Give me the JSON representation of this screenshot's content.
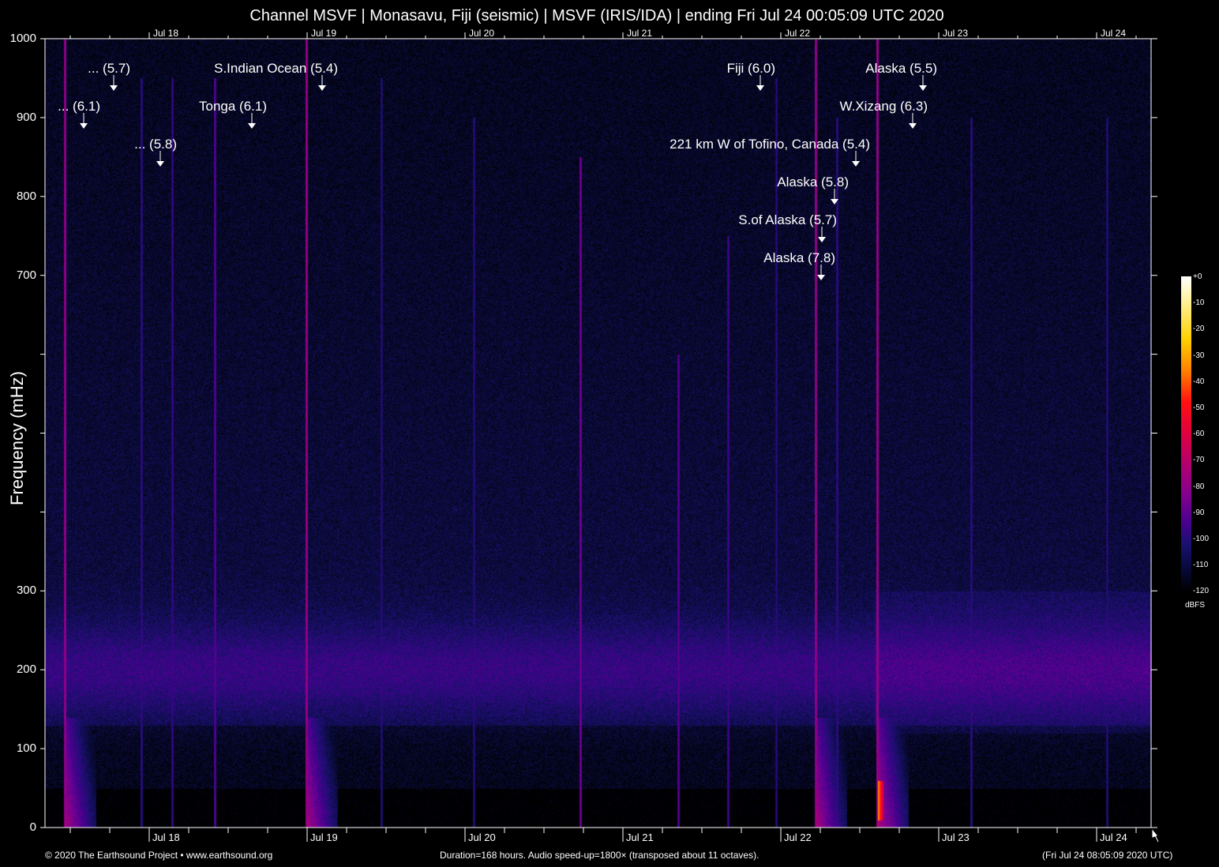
{
  "chart_data": {
    "type": "heatmap",
    "title": "Channel MSVF | Monasavu, Fiji (seismic) | MSVF (IRIS/IDA) | ending Fri Jul 24 00:05:09 UTC 2020",
    "ylabel": "Frequency (mHz)",
    "ylim": [
      0,
      1000
    ],
    "y_ticks": [
      "0",
      "100",
      "200",
      "300",
      "700",
      "800",
      "900",
      "1000"
    ],
    "x_ticks": [
      "Jul 18",
      "Jul 19",
      "Jul 20",
      "Jul 21",
      "Jul 22",
      "Jul 23",
      "Jul 24"
    ],
    "colorbar": {
      "label": "dBFS",
      "range": [
        -120,
        0
      ],
      "ticks": [
        "+0",
        "-10",
        "-20",
        "-30",
        "-40",
        "-50",
        "-60",
        "-70",
        "-80",
        "-90",
        "-100",
        "-110",
        "-120"
      ]
    },
    "events": [
      {
        "label": "... (5.7)"
      },
      {
        "label": "... (6.1)"
      },
      {
        "label": "... (5.8)"
      },
      {
        "label": "S.Indian Ocean (5.4)"
      },
      {
        "label": "Tonga (6.1)"
      },
      {
        "label": "Fiji (6.0)"
      },
      {
        "label": "Alaska (5.5)"
      },
      {
        "label": "W.Xizang (6.3)"
      },
      {
        "label": "221 km W of Tofino, Canada (5.4)"
      },
      {
        "label": "Alaska (5.8)"
      },
      {
        "label": "S.of Alaska (5.7)"
      },
      {
        "label": "Alaska (7.8)"
      }
    ]
  },
  "footer": {
    "copyright": "© 2020 The Earthsound Project • www.earthsound.org",
    "info": "Duration=168 hours. Audio speed-up=1800× (transposed about 11 octaves).",
    "timestamp": "(Fri Jul 24 08:05:09 2020 UTC)"
  }
}
